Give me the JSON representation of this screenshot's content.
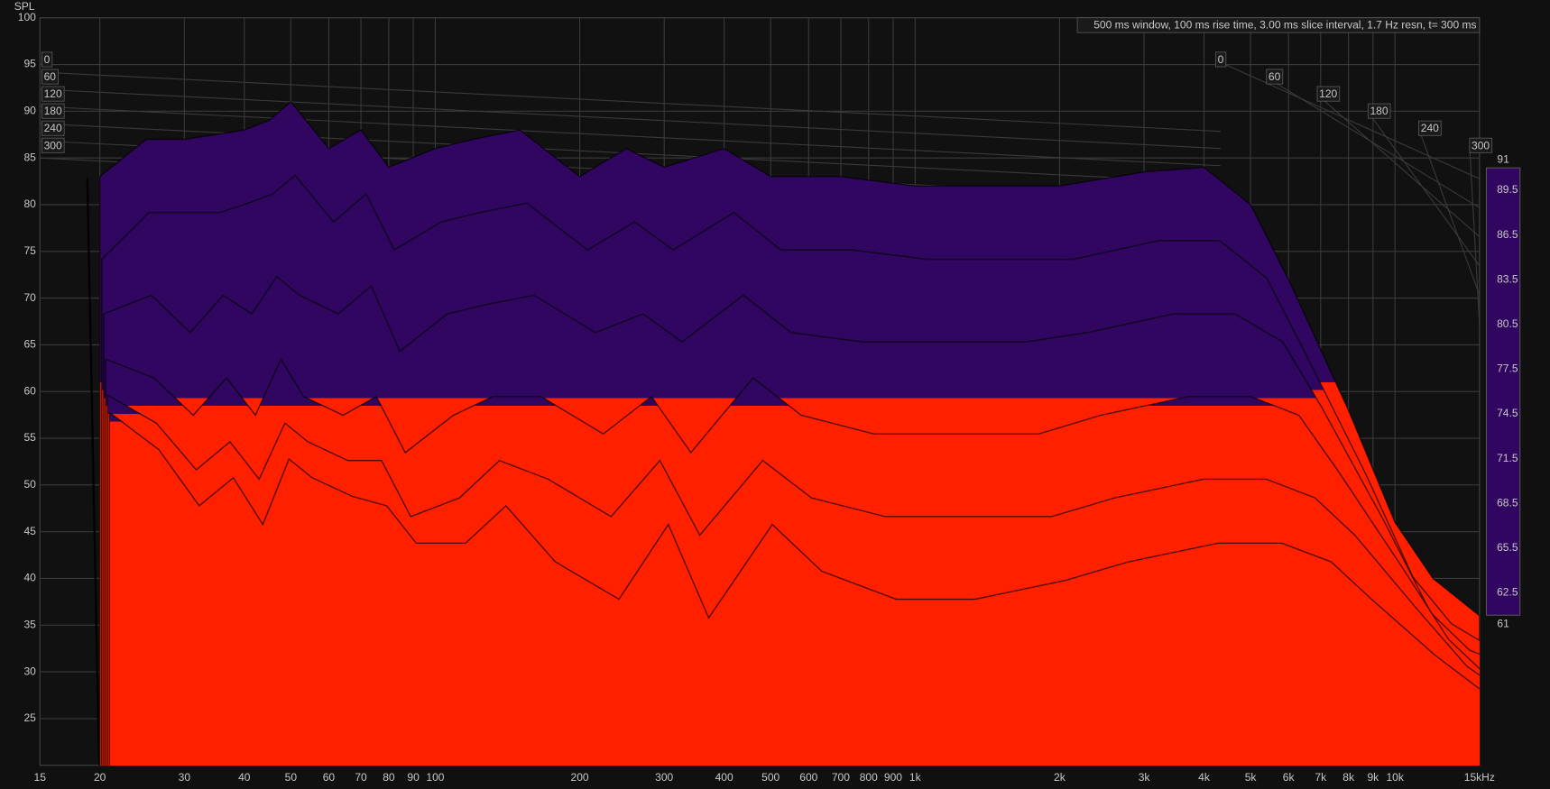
{
  "chart_data": {
    "type": "waterfall",
    "y_label": "SPL",
    "annotation": "500 ms window, 100 ms rise time, 3.00 ms slice interval, 1.7 Hz resn, t= 300 ms",
    "log_x": true,
    "grid": true,
    "xlim": [
      15,
      15000
    ],
    "xticks": [
      15,
      20,
      30,
      40,
      50,
      60,
      70,
      80,
      90,
      100,
      200,
      300,
      400,
      500,
      600,
      700,
      800,
      900,
      {
        "value": 1000,
        "label": "1k"
      },
      {
        "value": 2000,
        "label": "2k"
      },
      {
        "value": 3000,
        "label": "3k"
      },
      {
        "value": 4000,
        "label": "4k"
      },
      {
        "value": 5000,
        "label": "5k"
      },
      {
        "value": 6000,
        "label": "6k"
      },
      {
        "value": 7000,
        "label": "7k"
      },
      {
        "value": 8000,
        "label": "8k"
      },
      {
        "value": 9000,
        "label": "9k"
      },
      {
        "value": 10000,
        "label": "10k"
      },
      {
        "value": 15000,
        "label": "15kHz"
      }
    ],
    "ylim": [
      20,
      100
    ],
    "yticks": [
      25,
      30,
      35,
      40,
      45,
      50,
      55,
      60,
      65,
      70,
      75,
      80,
      85,
      90,
      95,
      100
    ],
    "zticks": [
      0,
      60,
      120,
      180,
      240,
      300
    ],
    "colorbar": {
      "min": 61,
      "max": 91,
      "ticks": [
        89.5,
        86.5,
        83.5,
        80.5,
        77.5,
        74.5,
        71.5,
        68.5,
        65.5,
        62.5
      ]
    },
    "colormap": [
      "#300660",
      "#1a08a0",
      "#0018d0",
      "#0060b0",
      "#00a0a0",
      "#00c080",
      "#00b020",
      "#50c000",
      "#b0d000",
      "#f0d800",
      "#f09000",
      "#ff2000"
    ],
    "frequencies": [
      20,
      25,
      30,
      35,
      40,
      45,
      50,
      60,
      70,
      80,
      100,
      120,
      150,
      200,
      250,
      300,
      400,
      500,
      700,
      1000,
      1500,
      2000,
      3000,
      4000,
      5000,
      6000,
      8000,
      10000,
      12000,
      15000
    ],
    "slices": [
      {
        "t": 0,
        "values": [
          83,
          87,
          87,
          87.5,
          88,
          89,
          91,
          86,
          88,
          84,
          86,
          87,
          88,
          83,
          86,
          84,
          86,
          83,
          83,
          82,
          82,
          82,
          83.5,
          84,
          80,
          72,
          58,
          46,
          40,
          36
        ]
      },
      {
        "t": 60,
        "values": [
          75,
          80,
          80,
          80,
          81,
          82,
          84,
          79,
          82,
          76,
          79,
          80,
          81,
          76,
          79,
          76,
          80,
          76,
          76,
          75,
          75,
          75,
          77,
          77,
          73,
          65,
          52,
          41,
          36,
          33
        ]
      },
      {
        "t": 120,
        "values": [
          70,
          72,
          68,
          72,
          70,
          74,
          72,
          70,
          73,
          66,
          70,
          71,
          72,
          68,
          70,
          67,
          72,
          68,
          67,
          67,
          67,
          68,
          70,
          70,
          67,
          60,
          48,
          38,
          34,
          32
        ]
      },
      {
        "t": 180,
        "values": [
          66,
          64,
          60,
          64,
          60,
          66,
          62,
          60,
          62,
          56,
          60,
          62,
          62,
          58,
          62,
          56,
          64,
          60,
          58,
          58,
          58,
          60,
          62,
          62,
          60,
          54,
          44,
          36,
          32,
          31
        ]
      },
      {
        "t": 240,
        "values": [
          63,
          60,
          55,
          58,
          54,
          60,
          58,
          56,
          56,
          50,
          52,
          56,
          54,
          50,
          56,
          48,
          56,
          52,
          50,
          50,
          50,
          52,
          54,
          54,
          52,
          48,
          40,
          34,
          31,
          30
        ]
      },
      {
        "t": 300,
        "values": [
          62,
          58,
          52,
          55,
          50,
          57,
          55,
          53,
          52,
          48,
          48,
          52,
          46,
          42,
          50,
          40,
          50,
          45,
          42,
          42,
          44,
          46,
          48,
          48,
          46,
          42,
          36,
          32,
          30,
          30
        ]
      }
    ]
  }
}
